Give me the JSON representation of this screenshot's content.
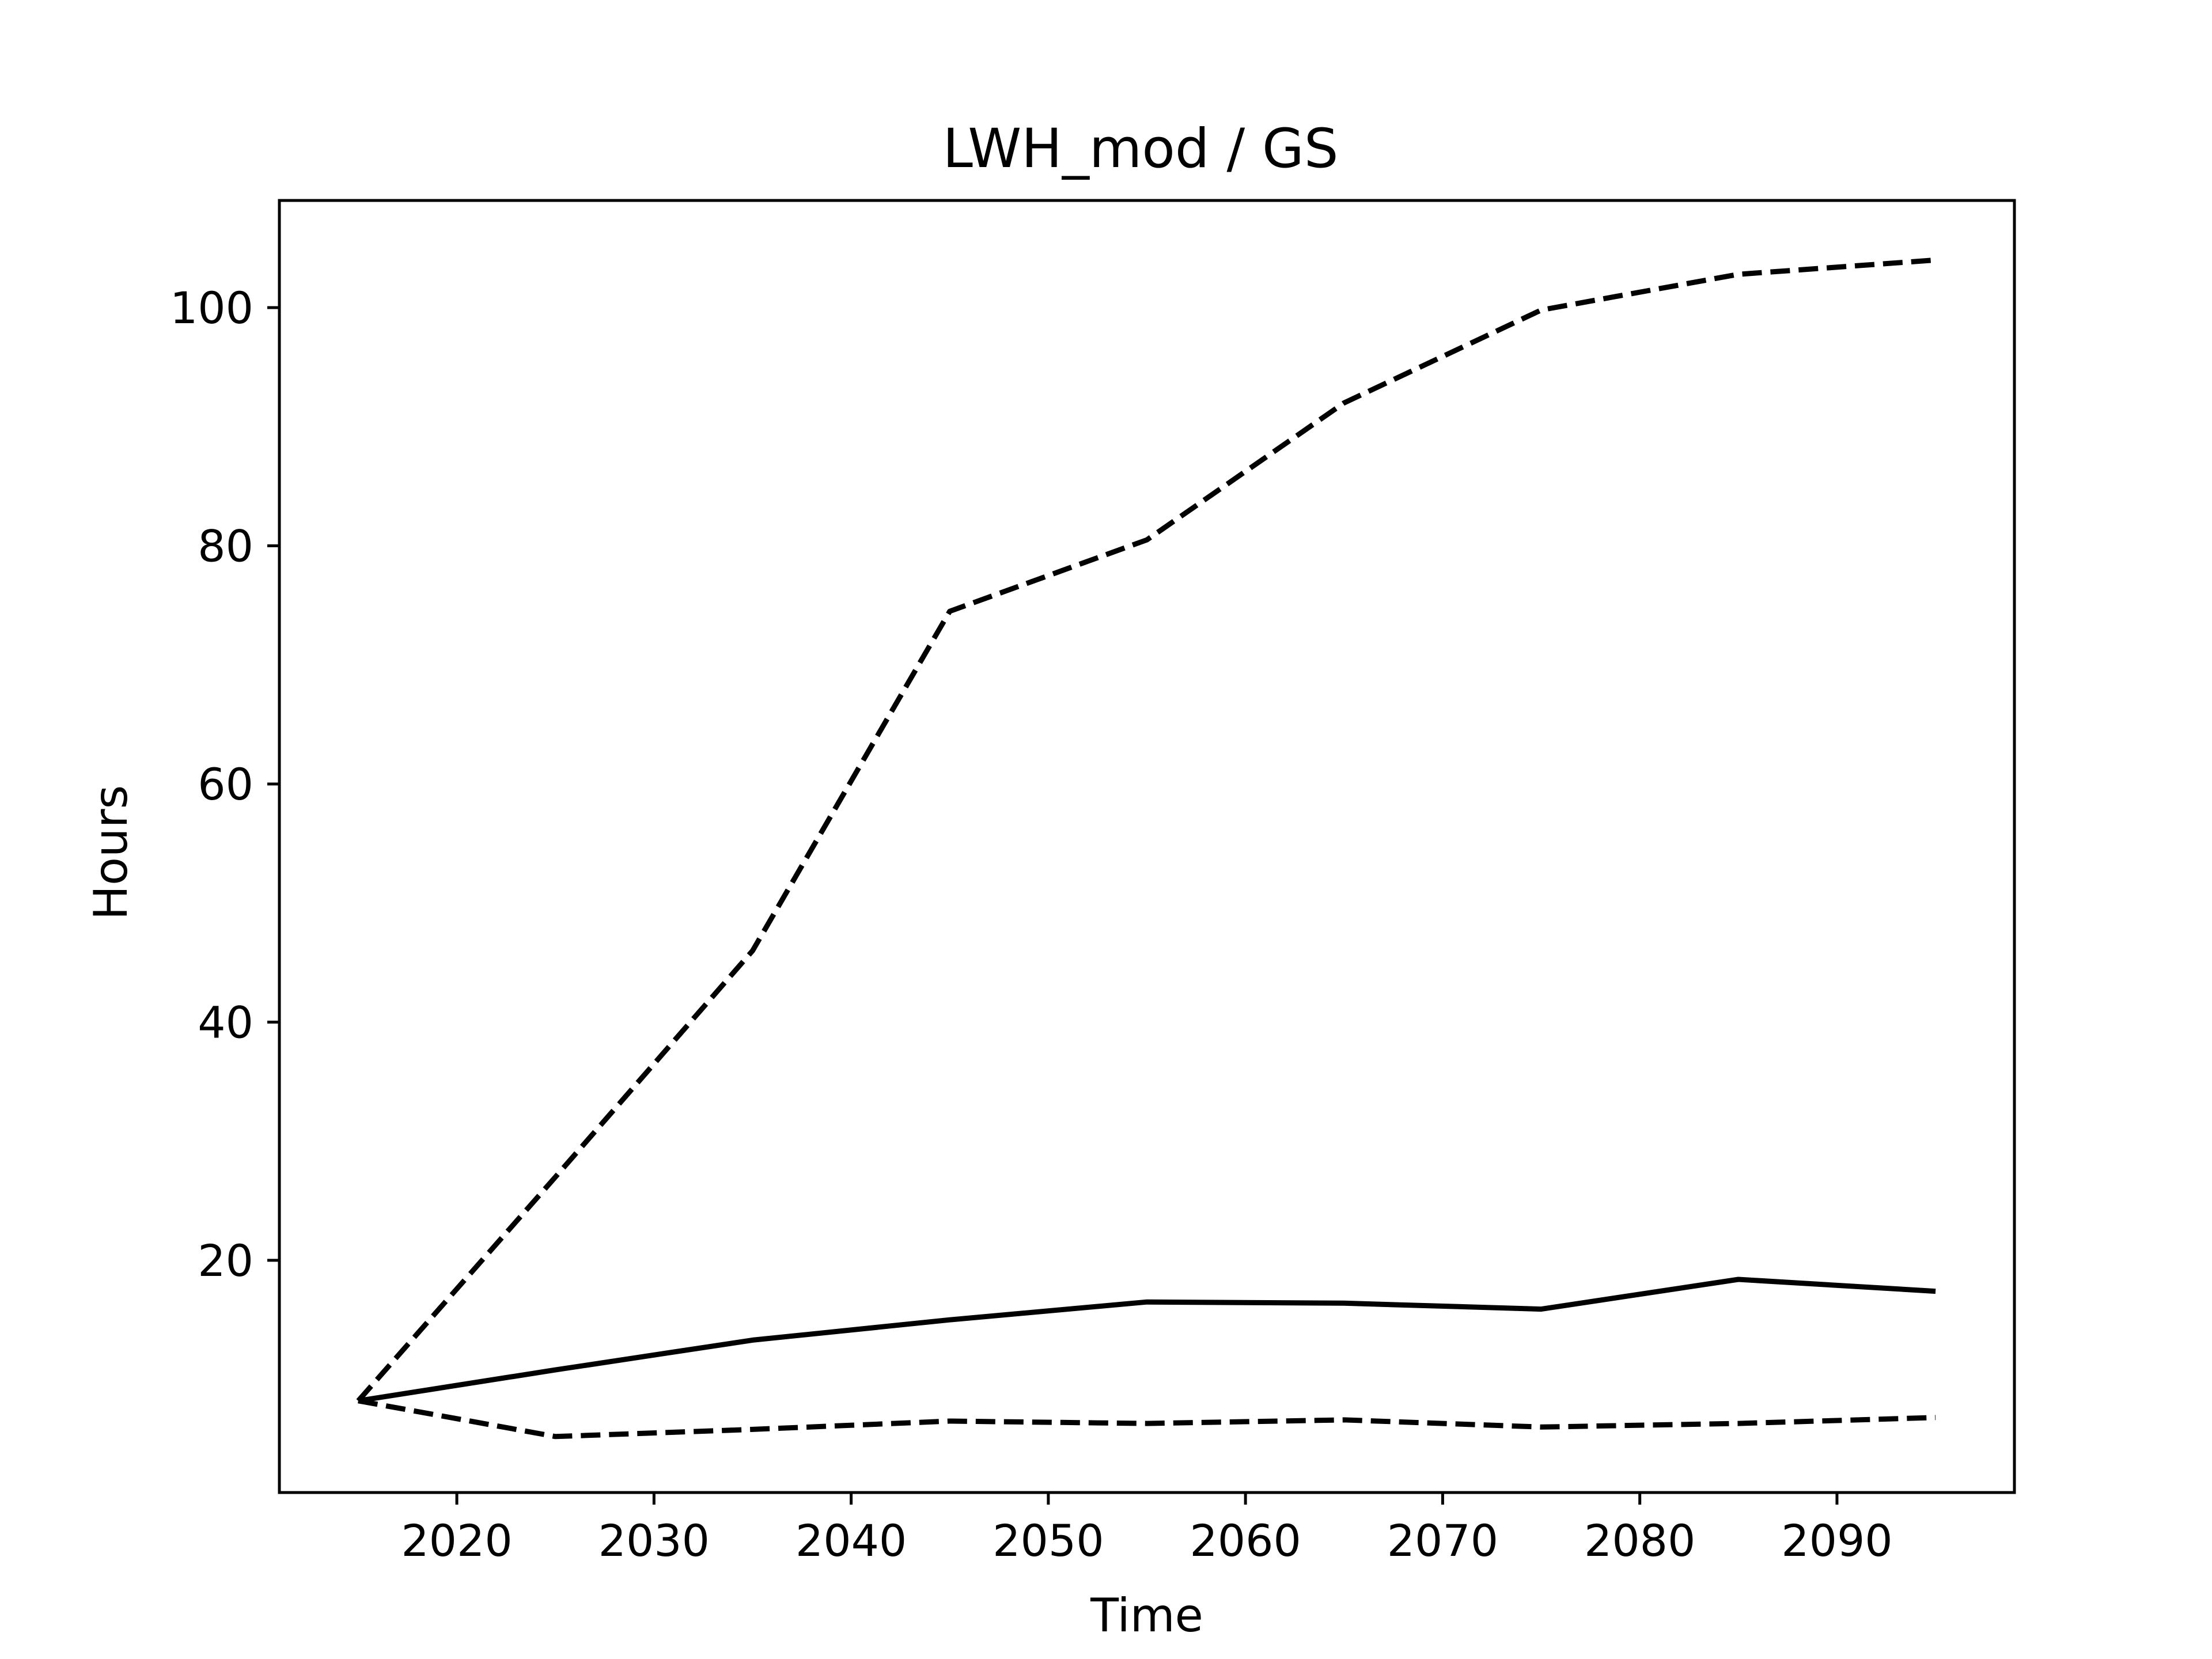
{
  "chart_data": {
    "type": "line",
    "title": "LWH_mod / GS",
    "xlabel": "Time",
    "ylabel": "Hours",
    "xlim": [
      2011,
      2099
    ],
    "ylim": [
      0.5,
      109
    ],
    "x_ticks": [
      2020,
      2030,
      2040,
      2050,
      2060,
      2070,
      2080,
      2090
    ],
    "y_ticks": [
      20,
      40,
      60,
      80,
      100
    ],
    "grid": false,
    "x": [
      2015,
      2025,
      2035,
      2045,
      2055,
      2065,
      2075,
      2085,
      2095
    ],
    "series": [
      {
        "style": "solid",
        "color": "#000000",
        "values": [
          8.2,
          10.8,
          13.3,
          15.0,
          16.5,
          16.4,
          15.9,
          18.4,
          17.4
        ]
      },
      {
        "style": "dashed",
        "color": "#000000",
        "values": [
          8.2,
          27.0,
          46.0,
          74.5,
          80.5,
          92.0,
          99.8,
          102.8,
          104.0
        ]
      },
      {
        "style": "dashed",
        "color": "#000000",
        "values": [
          8.2,
          5.2,
          5.8,
          6.5,
          6.3,
          6.6,
          6.0,
          6.3,
          6.8
        ]
      }
    ]
  }
}
